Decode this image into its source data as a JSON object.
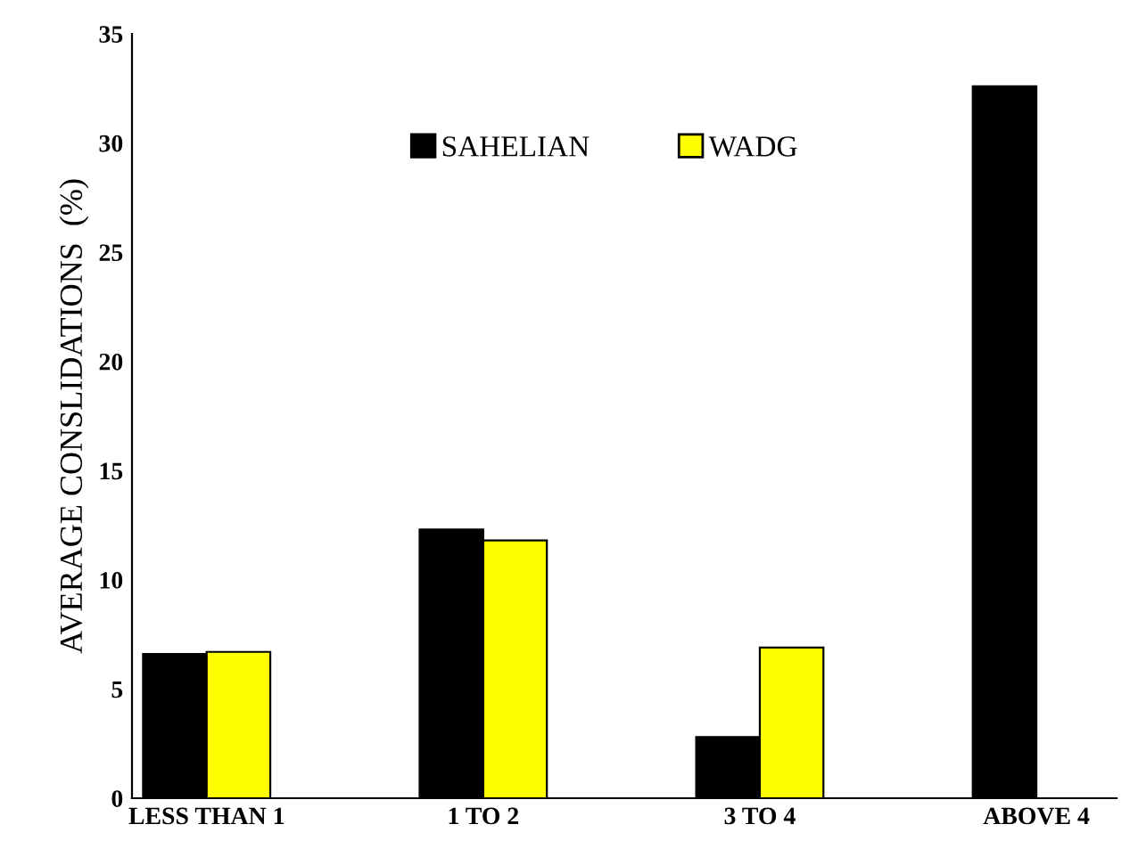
{
  "chart_data": {
    "type": "bar",
    "ylabel": "AVERAGE CONSLIDATIONS  (%)",
    "categories": [
      "LESS THAN 1",
      "1 TO 2",
      "3 TO 4",
      "ABOVE 4"
    ],
    "series": [
      {
        "name": "SAHELIAN",
        "color": "#000000",
        "values": [
          6.6,
          12.3,
          2.8,
          32.6
        ]
      },
      {
        "name": "WADG",
        "color": "#ffff00",
        "values": [
          6.7,
          11.8,
          6.9,
          null
        ]
      }
    ],
    "ylim": [
      0,
      35
    ],
    "yticks": [
      0,
      5,
      10,
      15,
      20,
      25,
      30,
      35
    ],
    "grid": false,
    "legend": "top"
  }
}
